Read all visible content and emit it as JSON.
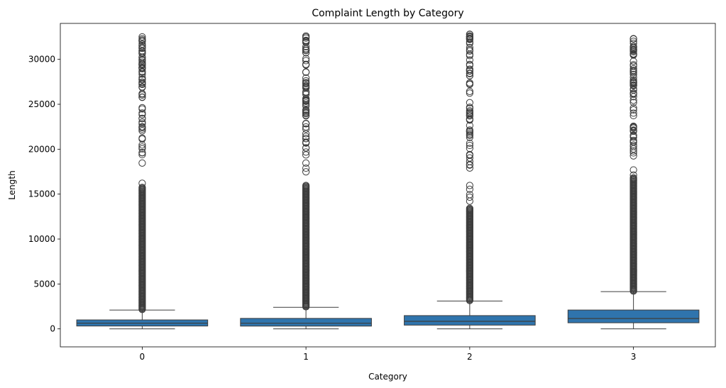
{
  "chart_data": {
    "type": "box",
    "title": "Complaint Length by Category",
    "xlabel": "Category",
    "ylabel": "Length",
    "categories": [
      "0",
      "1",
      "2",
      "3"
    ],
    "ylim": [
      -2000,
      34000
    ],
    "yticks": [
      0,
      5000,
      10000,
      15000,
      20000,
      25000,
      30000
    ],
    "ytick_labels": [
      "0",
      "5000",
      "10000",
      "15000",
      "20000",
      "25000",
      "30000"
    ],
    "grid": false,
    "box_color": "#2f74ad",
    "line_color": "#3d3d3d",
    "boxes": [
      {
        "category": "0",
        "min": 0,
        "q1": 320,
        "median": 640,
        "q3": 1000,
        "max": 2100,
        "outlier_range": [
          2100,
          32500
        ]
      },
      {
        "category": "1",
        "min": 0,
        "q1": 310,
        "median": 630,
        "q3": 1170,
        "max": 2400,
        "outlier_range": [
          2400,
          32600
        ]
      },
      {
        "category": "2",
        "min": 0,
        "q1": 420,
        "median": 840,
        "q3": 1480,
        "max": 3100,
        "outlier_range": [
          3100,
          32800
        ]
      },
      {
        "category": "3",
        "min": 0,
        "q1": 680,
        "median": 1160,
        "q3": 2100,
        "max": 4150,
        "outlier_range": [
          4150,
          32300
        ]
      }
    ]
  }
}
